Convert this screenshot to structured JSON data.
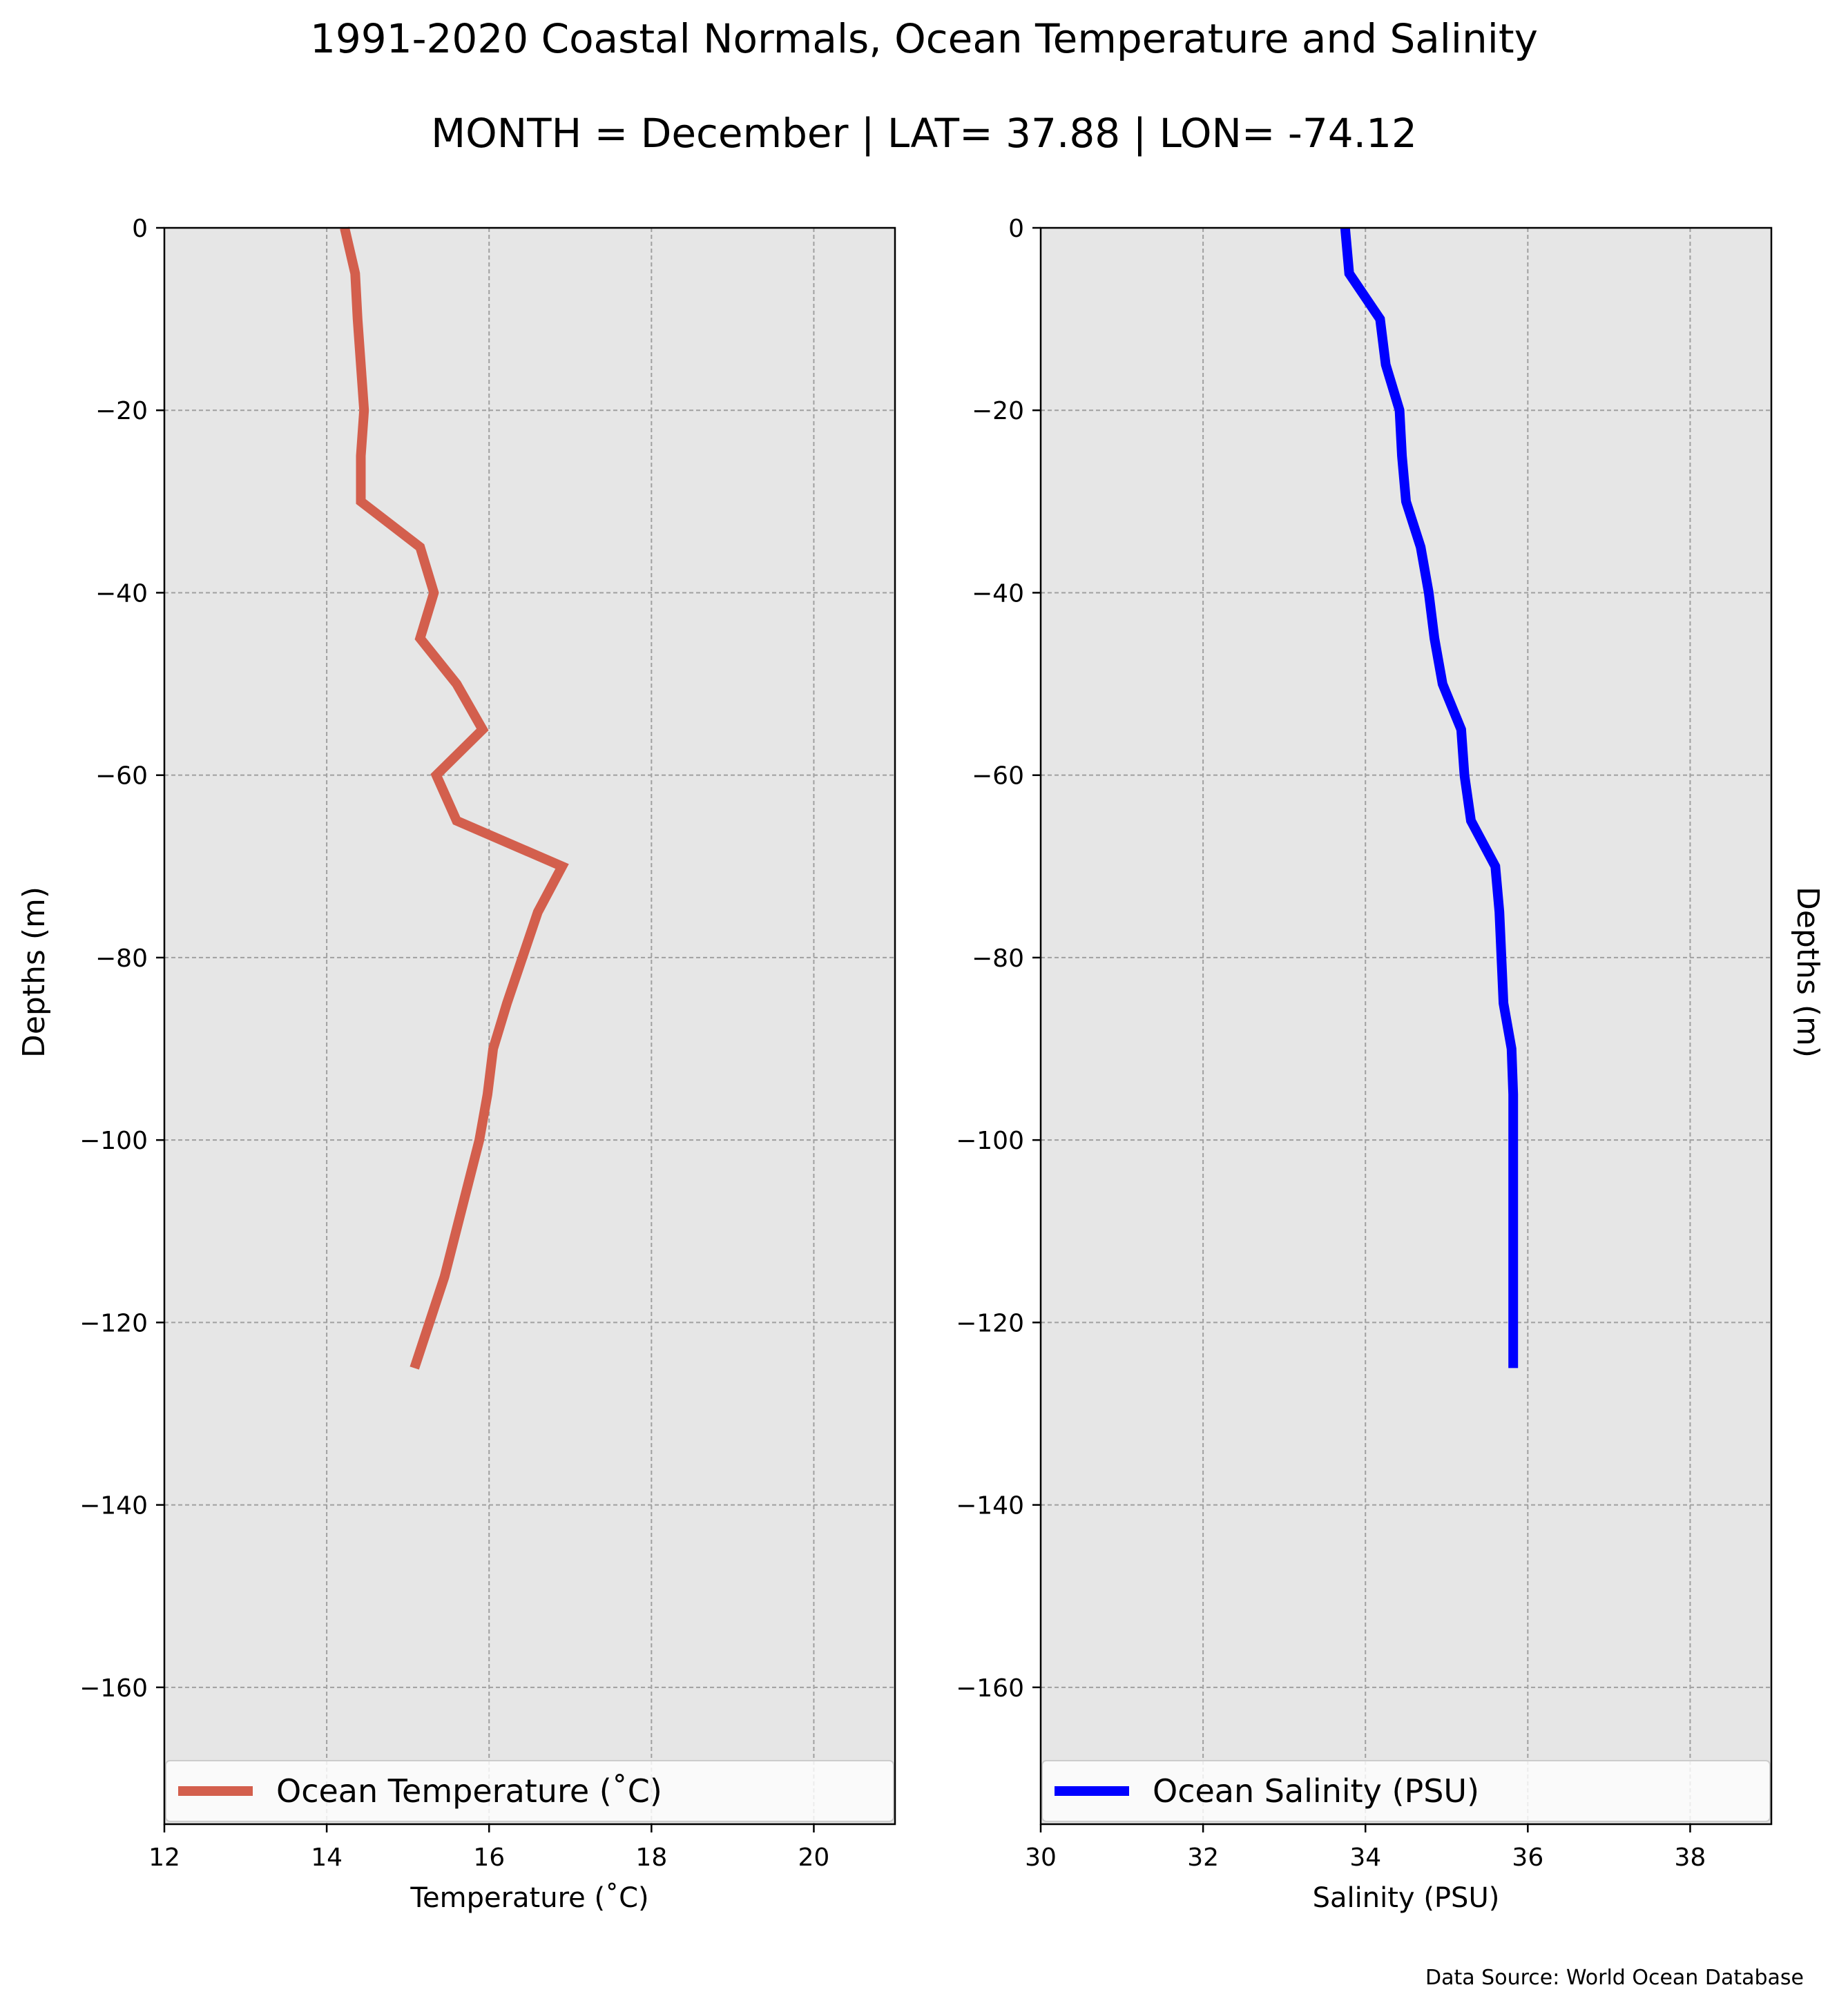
{
  "figure": {
    "title": "1991-2020 Coastal Normals, Ocean Temperature and Salinity",
    "subtitle": "MONTH = December | LAT= 37.88 | LON= -74.12",
    "source_note": "Data Source: World Ocean Database"
  },
  "chart_data": [
    {
      "type": "line",
      "xlabel": "Temperature ($^\\circ$C)",
      "xlabel_display": "Temperature (˚C)",
      "ylabel": "Depths (m)",
      "xlim": [
        12,
        21
      ],
      "ylim": [
        -175,
        0
      ],
      "xticks": [
        12,
        14,
        16,
        18,
        20
      ],
      "yticks": [
        0,
        -20,
        -40,
        -60,
        -80,
        -100,
        -120,
        -140,
        -160
      ],
      "xtick_labels": [
        "12",
        "14",
        "16",
        "18",
        "20"
      ],
      "ytick_labels": [
        "0",
        "−20",
        "−40",
        "−60",
        "−80",
        "−100",
        "−120",
        "−140",
        "−160"
      ],
      "grid": true,
      "legend_position": "bottom",
      "background": "#e6e6e6",
      "series": [
        {
          "name": "Ocean Temperature (˚C)",
          "color": "#d35f4d",
          "x": [
            14.22,
            14.35,
            14.38,
            14.42,
            14.46,
            14.42,
            14.42,
            15.15,
            15.32,
            15.15,
            15.6,
            15.92,
            15.35,
            15.6,
            16.9,
            16.6,
            16.22,
            16.05,
            15.98,
            15.88,
            15.45,
            15.08
          ],
          "y": [
            0,
            -5,
            -10,
            -15,
            -20,
            -25,
            -30,
            -35,
            -40,
            -45,
            -50,
            -55,
            -60,
            -65,
            -70,
            -75,
            -85,
            -90,
            -95,
            -100,
            -115,
            -125
          ]
        }
      ]
    },
    {
      "type": "line",
      "xlabel": "Salinity (PSU)",
      "ylabel": "Depths (m)",
      "xlim": [
        30,
        39
      ],
      "ylim": [
        -175,
        0
      ],
      "xticks": [
        30,
        32,
        34,
        36,
        38
      ],
      "yticks": [
        0,
        -20,
        -40,
        -60,
        -80,
        -100,
        -120,
        -140,
        -160
      ],
      "xtick_labels": [
        "30",
        "32",
        "34",
        "36",
        "38"
      ],
      "ytick_labels": [
        "0",
        "−20",
        "−40",
        "−60",
        "−80",
        "−100",
        "−120",
        "−140",
        "−160"
      ],
      "grid": true,
      "legend_position": "bottom",
      "background": "#e6e6e6",
      "series": [
        {
          "name": "Ocean Salinity (PSU)",
          "color": "#0000ff",
          "x": [
            33.75,
            33.8,
            34.18,
            34.25,
            34.42,
            34.45,
            34.5,
            34.68,
            34.78,
            34.85,
            34.95,
            35.18,
            35.22,
            35.3,
            35.6,
            35.65,
            35.7,
            35.8,
            35.82,
            35.82,
            35.82,
            35.82
          ],
          "y": [
            0,
            -5,
            -10,
            -15,
            -20,
            -25,
            -30,
            -35,
            -40,
            -45,
            -50,
            -55,
            -60,
            -65,
            -70,
            -75,
            -85,
            -90,
            -95,
            -100,
            -115,
            -125
          ]
        }
      ]
    }
  ]
}
